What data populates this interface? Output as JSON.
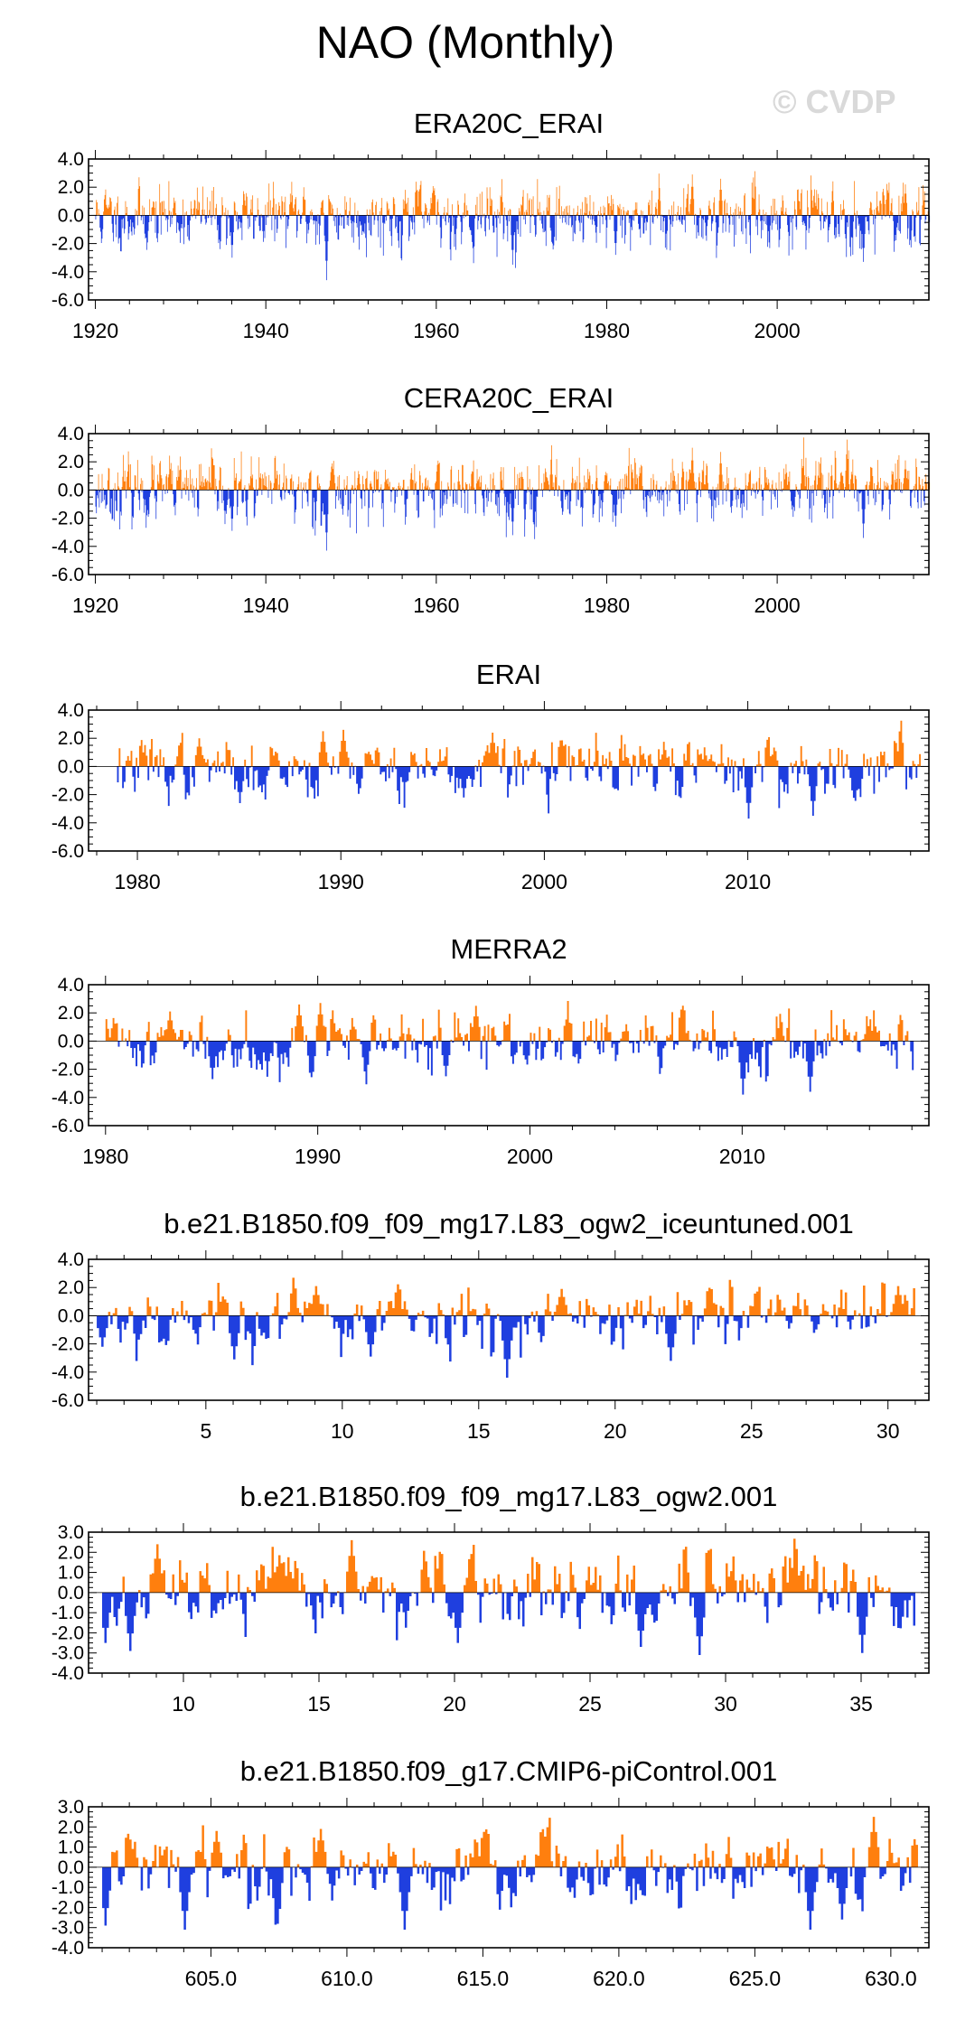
{
  "page": {
    "title": "NAO (Monthly)",
    "watermark": "© CVDP"
  },
  "colors": {
    "positive": "#ff7f0e",
    "negative": "#1f3fdf",
    "frame": "#000000"
  },
  "chart_data": [
    {
      "type": "bar",
      "title": "ERA20C_ERAI",
      "xlim": [
        1919.2,
        2017.8
      ],
      "ylim": [
        -6.0,
        4.0
      ],
      "yticks": [
        4.0,
        2.0,
        0.0,
        -2.0,
        -4.0,
        -6.0
      ],
      "ytick_labels": [
        "4.0",
        "2.0",
        "0.0",
        "-2.0",
        "-4.0",
        "-6.0"
      ],
      "xticks": [
        1920,
        1940,
        1960,
        1980,
        2000
      ],
      "xtick_labels": [
        "1920",
        "1940",
        "1960",
        "1980",
        "2000"
      ],
      "x_start": 1920,
      "x_end": 2017.9,
      "months_per_unit": 12,
      "amp_pos": 1.1,
      "amp_neg": 1.25,
      "seed": 11,
      "extremes": [
        [
          1947.1,
          -4.6
        ],
        [
          1968.9,
          -3.5
        ],
        [
          1990.0,
          2.9
        ],
        [
          1993.3,
          2.6
        ],
        [
          2010.1,
          -3.3
        ],
        [
          1981.0,
          -2.8
        ],
        [
          1936.0,
          -3.0
        ],
        [
          2015.0,
          2.2
        ]
      ]
    },
    {
      "type": "bar",
      "title": "CERA20C_ERAI",
      "xlim": [
        1919.2,
        2017.8
      ],
      "ylim": [
        -6.0,
        4.0
      ],
      "yticks": [
        4.0,
        2.0,
        0.0,
        -2.0,
        -4.0,
        -6.0
      ],
      "ytick_labels": [
        "4.0",
        "2.0",
        "0.0",
        "-2.0",
        "-4.0",
        "-6.0"
      ],
      "xticks": [
        1920,
        1940,
        1960,
        1980,
        2000
      ],
      "xtick_labels": [
        "1920",
        "1940",
        "1960",
        "1980",
        "2000"
      ],
      "x_start": 1920,
      "x_end": 2017.9,
      "months_per_unit": 12,
      "amp_pos": 1.1,
      "amp_neg": 1.25,
      "seed": 23,
      "extremes": [
        [
          1947.1,
          -4.3
        ],
        [
          1968.9,
          -3.2
        ],
        [
          1990.0,
          3.0
        ],
        [
          1993.3,
          2.7
        ],
        [
          2010.1,
          -3.4
        ],
        [
          1981.0,
          -2.6
        ],
        [
          1936.0,
          -2.9
        ],
        [
          2015.0,
          2.1
        ]
      ]
    },
    {
      "type": "bar",
      "title": "ERAI",
      "xlim": [
        1977.6,
        2018.9
      ],
      "ylim": [
        -6.0,
        4.0
      ],
      "yticks": [
        4.0,
        2.0,
        0.0,
        -2.0,
        -4.0,
        -6.0
      ],
      "ytick_labels": [
        "4.0",
        "2.0",
        "0.0",
        "-2.0",
        "-4.0",
        "-6.0"
      ],
      "xticks": [
        1980,
        1990,
        2000,
        2010
      ],
      "xtick_labels": [
        "1980",
        "1990",
        "2000",
        "2010"
      ],
      "x_start": 1979,
      "x_end": 2018.5,
      "months_per_unit": 12,
      "amp_pos": 1.1,
      "amp_neg": 1.2,
      "seed": 37,
      "extremes": [
        [
          1989.1,
          2.5
        ],
        [
          1990.1,
          2.6
        ],
        [
          2010.0,
          -3.7
        ],
        [
          2013.2,
          -3.5
        ],
        [
          1996.0,
          -2.2
        ],
        [
          1983.0,
          2.0
        ],
        [
          1997.4,
          2.4
        ],
        [
          1985.0,
          -2.6
        ]
      ]
    },
    {
      "type": "bar",
      "title": "MERRA2",
      "xlim": [
        1979.2,
        2018.8
      ],
      "ylim": [
        -6.0,
        4.0
      ],
      "yticks": [
        4.0,
        2.0,
        0.0,
        -2.0,
        -4.0,
        -6.0
      ],
      "ytick_labels": [
        "4.0",
        "2.0",
        "0.0",
        "-2.0",
        "-4.0",
        "-6.0"
      ],
      "xticks": [
        1980,
        1990,
        2000,
        2010
      ],
      "xtick_labels": [
        "1980",
        "1990",
        "2000",
        "2010"
      ],
      "x_start": 1980,
      "x_end": 2018.1,
      "months_per_unit": 12,
      "amp_pos": 1.1,
      "amp_neg": 1.2,
      "seed": 41,
      "extremes": [
        [
          1989.1,
          2.6
        ],
        [
          1990.1,
          2.7
        ],
        [
          2010.0,
          -3.8
        ],
        [
          2013.2,
          -3.6
        ],
        [
          1996.0,
          -2.5
        ],
        [
          1983.0,
          2.1
        ],
        [
          1997.4,
          2.5
        ],
        [
          1985.0,
          -2.7
        ]
      ]
    },
    {
      "type": "bar",
      "title": "b.e21.B1850.f09_f09_mg17.L83_ogw2_iceuntuned.001",
      "xlim": [
        0.7,
        31.5
      ],
      "ylim": [
        -6.0,
        4.0
      ],
      "yticks": [
        4.0,
        2.0,
        0.0,
        -2.0,
        -4.0,
        -6.0
      ],
      "ytick_labels": [
        "4.0",
        "2.0",
        "0.0",
        "-2.0",
        "-4.0",
        "-6.0"
      ],
      "xticks": [
        5,
        10,
        15,
        20,
        25,
        30
      ],
      "xtick_labels": [
        "5",
        "10",
        "15",
        "20",
        "25",
        "30"
      ],
      "x_start": 1,
      "x_end": 31,
      "months_per_unit": 12,
      "amp_pos": 1.2,
      "amp_neg": 1.3,
      "seed": 53,
      "extremes": [
        [
          6.0,
          -3.1
        ],
        [
          16.0,
          -4.4
        ],
        [
          22.0,
          -3.2
        ],
        [
          18.0,
          1.9
        ],
        [
          9.0,
          2.1
        ],
        [
          30.3,
          2.1
        ],
        [
          11.0,
          -2.9
        ],
        [
          1.2,
          -2.2
        ]
      ]
    },
    {
      "type": "bar",
      "title": "b.e21.B1850.f09_f09_mg17.L83_ogw2.001",
      "xlim": [
        6.5,
        37.5
      ],
      "ylim": [
        -4.0,
        3.0
      ],
      "yticks": [
        3.0,
        2.0,
        1.0,
        0.0,
        -1.0,
        -2.0,
        -3.0,
        -4.0
      ],
      "ytick_labels": [
        "3.0",
        "2.0",
        "1.0",
        "0.0",
        "-1.0",
        "-2.0",
        "-3.0",
        "-4.0"
      ],
      "xticks": [
        10,
        15,
        20,
        25,
        30,
        35
      ],
      "xtick_labels": [
        "10",
        "15",
        "20",
        "25",
        "30",
        "35"
      ],
      "x_start": 7,
      "x_end": 37,
      "months_per_unit": 12,
      "amp_pos": 0.9,
      "amp_neg": 1.0,
      "seed": 67,
      "extremes": [
        [
          29.0,
          -3.1
        ],
        [
          16.2,
          2.6
        ],
        [
          9.0,
          2.4
        ],
        [
          8.0,
          -2.9
        ],
        [
          35.0,
          -3.0
        ],
        [
          20.1,
          -2.5
        ],
        [
          26.8,
          -2.7
        ],
        [
          7.1,
          -2.5
        ]
      ]
    },
    {
      "type": "bar",
      "title": "b.e21.B1850.f09_g17.CMIP6-piControl.001",
      "xlim": [
        600.5,
        631.4
      ],
      "ylim": [
        -4.0,
        3.0
      ],
      "yticks": [
        3.0,
        2.0,
        1.0,
        0.0,
        -1.0,
        -2.0,
        -3.0,
        -4.0
      ],
      "ytick_labels": [
        "3.0",
        "2.0",
        "1.0",
        "0.0",
        "-1.0",
        "-2.0",
        "-3.0",
        "-4.0"
      ],
      "xticks": [
        605.0,
        610.0,
        615.0,
        620.0,
        625.0,
        630.0
      ],
      "xtick_labels": [
        "605.0",
        "610.0",
        "615.0",
        "620.0",
        "625.0",
        "630.0"
      ],
      "x_start": 601,
      "x_end": 631,
      "months_per_unit": 12,
      "amp_pos": 0.95,
      "amp_neg": 1.0,
      "seed": 79,
      "extremes": [
        [
          604.0,
          -3.1
        ],
        [
          612.1,
          -3.1
        ],
        [
          627.0,
          -3.1
        ],
        [
          629.3,
          2.5
        ],
        [
          609.0,
          1.9
        ],
        [
          601.1,
          -2.9
        ],
        [
          628.2,
          -2.6
        ],
        [
          605.2,
          1.8
        ]
      ]
    }
  ]
}
